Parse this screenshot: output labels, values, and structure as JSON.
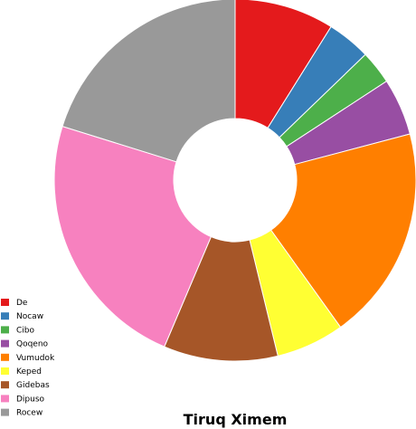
{
  "chart_data": {
    "type": "pie",
    "donut": true,
    "title": "Tiruq Ximem",
    "start": "top, clockwise",
    "legend_position": "bottom-left",
    "labels": [
      "De",
      "Nocaw",
      "Cibo",
      "Qoqeno",
      "Vumudok",
      "Keped",
      "Gidebas",
      "Dipuso",
      "Rocew"
    ],
    "values": [
      8.9,
      3.9,
      3.0,
      5.1,
      19.2,
      6.1,
      10.2,
      23.4,
      20.2
    ],
    "colors": [
      "#e41a1c",
      "#377eb8",
      "#4daf4a",
      "#984ea3",
      "#ff7f00",
      "#ffff33",
      "#a65628",
      "#f781bf",
      "#999999"
    ]
  }
}
